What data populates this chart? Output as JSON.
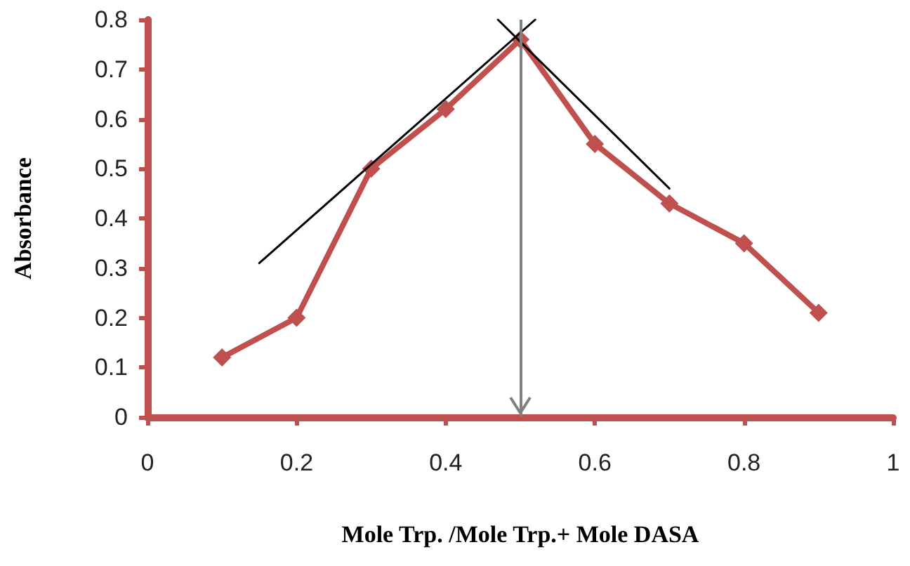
{
  "chart_data": {
    "type": "line",
    "xlabel": "Mole Trp. /Mole Trp.+ Mole DASA",
    "ylabel": "Absorbance",
    "x": [
      0.1,
      0.2,
      0.3,
      0.4,
      0.5,
      0.6,
      0.7,
      0.8,
      0.9
    ],
    "series": [
      {
        "color": "#c0504d",
        "values": [
          0.12,
          0.2,
          0.5,
          0.62,
          0.76,
          0.55,
          0.43,
          0.35,
          0.21
        ],
        "marker": "diamond"
      },
      {
        "type": "line",
        "color": "#000000",
        "x": [
          0.15,
          0.52
        ],
        "values": [
          0.31,
          0.8
        ],
        "marker": "none"
      },
      {
        "type": "line",
        "color": "#000000",
        "x": [
          0.47,
          0.7
        ],
        "values": [
          0.8,
          0.46
        ],
        "marker": "none"
      }
    ],
    "xlim": [
      0,
      1
    ],
    "xticks": [
      0,
      0.2,
      0.4,
      0.6,
      0.8,
      1
    ],
    "ylim": [
      0,
      0.8
    ],
    "yticks": [
      0,
      0.1,
      0.2,
      0.3,
      0.4,
      0.5,
      0.6,
      0.7,
      0.8
    ],
    "ref_lines": [
      {
        "axis": "x",
        "value": 0.5,
        "color": "#808080"
      }
    ],
    "grid": false
  }
}
